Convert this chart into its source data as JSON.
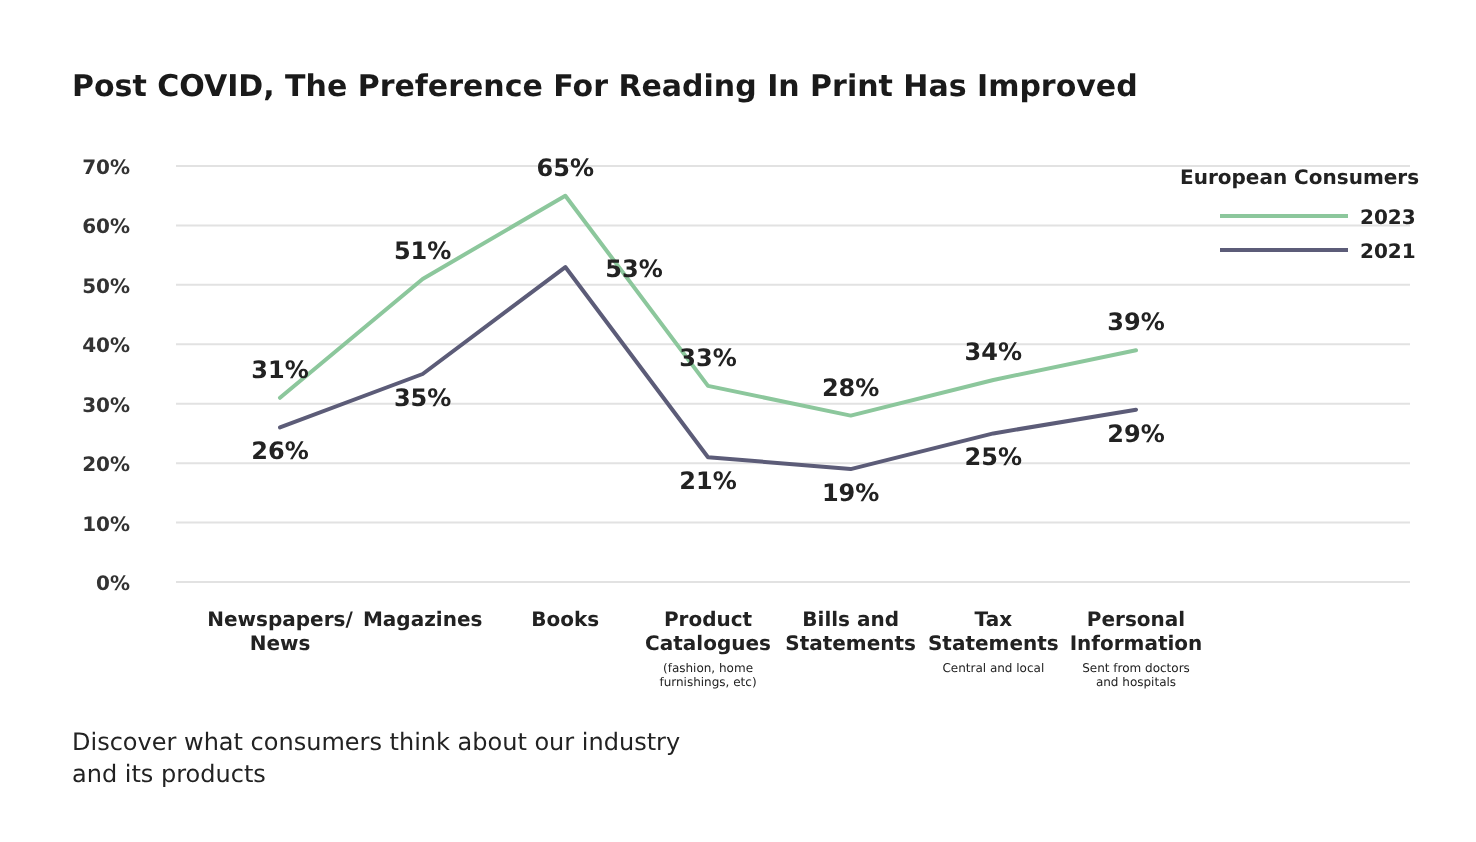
{
  "chart_data": {
    "type": "line",
    "title": "Post COVID, The Preference For Reading In Print Has Improved",
    "categories": [
      "Newspapers/\nNews",
      "Magazines",
      "Books",
      "Product\nCatalogues\n(fashion, home\nfurnishings, etc)",
      "Bills and\nStatements",
      "Tax\nStatements\nCentral and local",
      "Personal\nInformation\nSent from doctors\nand hospitals"
    ],
    "series": [
      {
        "name": "2023",
        "color": "#8cc79c",
        "values": [
          31,
          51,
          65,
          33,
          28,
          34,
          39
        ],
        "value_labels": [
          "31%",
          "51%",
          "65%",
          "33%",
          "28%",
          "34%",
          "39%"
        ]
      },
      {
        "name": "2021",
        "color": "#5c5c78",
        "values": [
          26,
          35,
          53,
          21,
          19,
          25,
          29
        ],
        "value_labels": [
          "26%",
          "35%",
          "53%",
          "21%",
          "19%",
          "25%",
          "29%"
        ]
      }
    ],
    "ylim": [
      0,
      70
    ],
    "yticks": [
      {
        "value": 0,
        "label": "0%"
      },
      {
        "value": 10,
        "label": "10%"
      },
      {
        "value": 20,
        "label": "20%"
      },
      {
        "value": 30,
        "label": "30%"
      },
      {
        "value": 40,
        "label": "40%"
      },
      {
        "value": 50,
        "label": "50%"
      },
      {
        "value": 60,
        "label": "60%"
      },
      {
        "value": 70,
        "label": "70%"
      }
    ],
    "grid": "y",
    "legend": "top right",
    "legend_title": "European Consumers",
    "annotations": [
      "Discover what consumers think about our industry\nand its products"
    ]
  }
}
